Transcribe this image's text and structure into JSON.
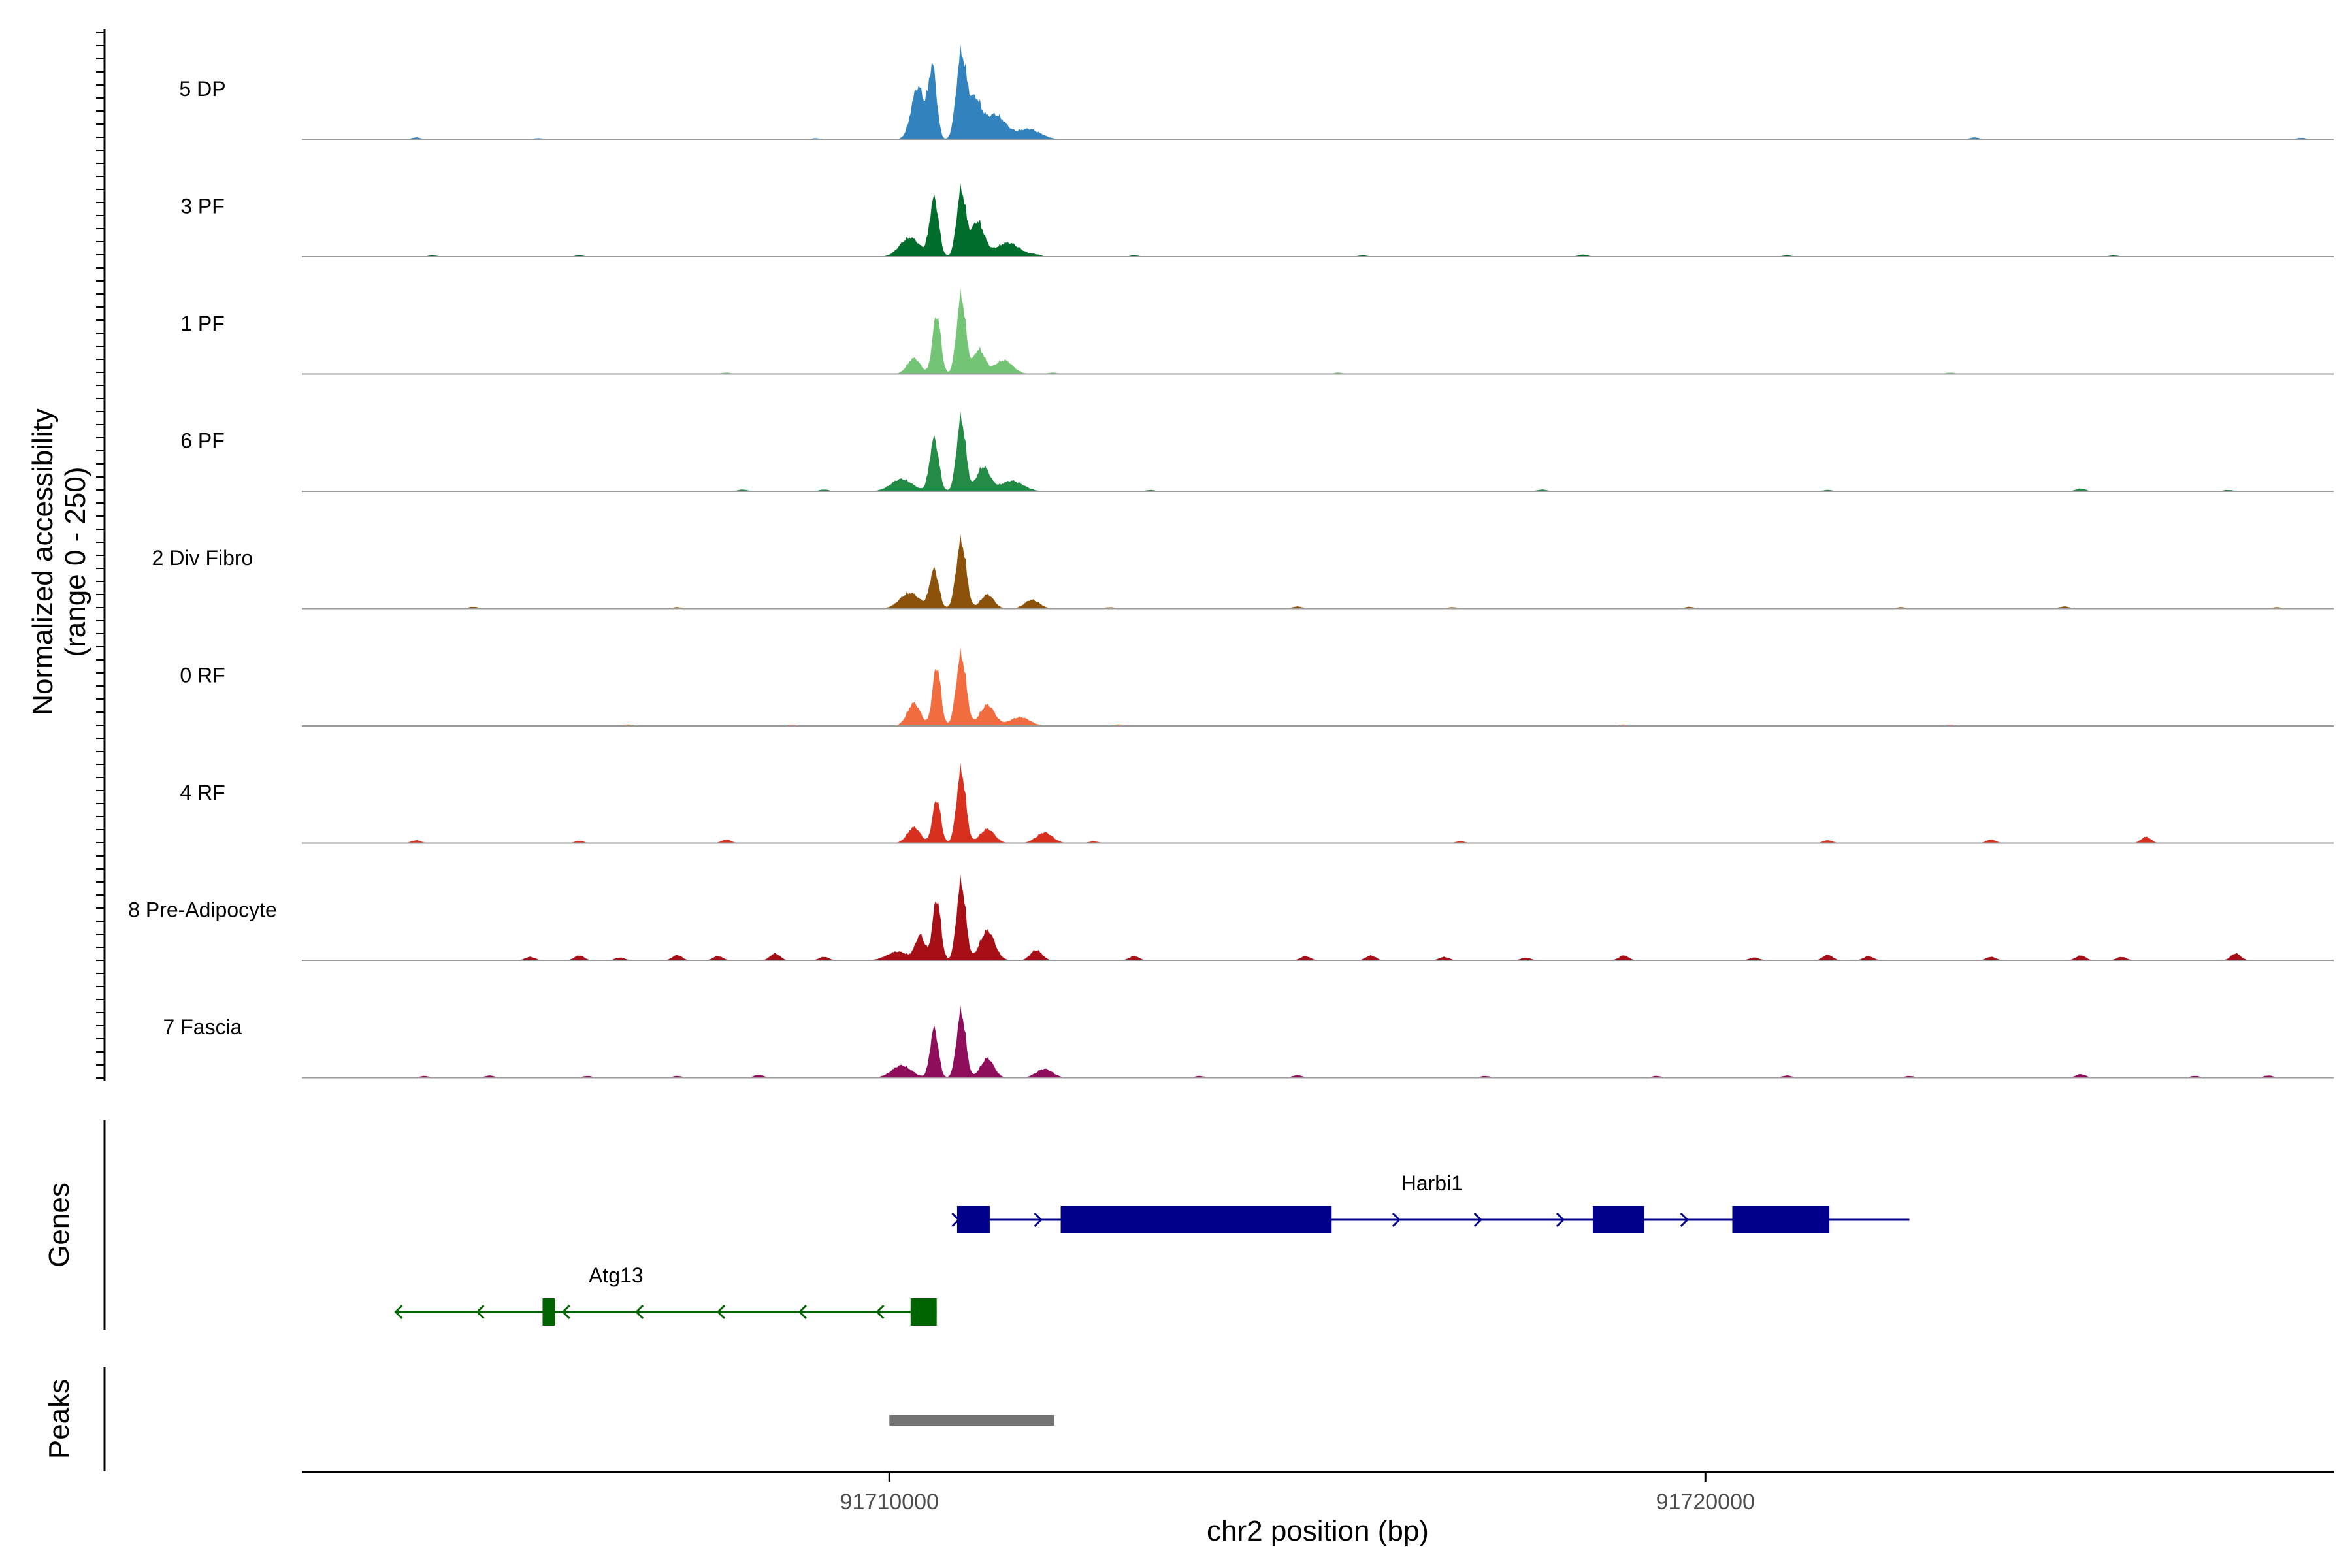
{
  "chart_data": {
    "type": "area",
    "title": "",
    "ylabel_line1": "Normalized accessibility",
    "ylabel_line2": "(range 0 - 250)",
    "genes_label": "Genes",
    "peaks_label": "Peaks",
    "xlabel": "chr2 position (bp)",
    "xlim": [
      91702800,
      91727700
    ],
    "ylim": [
      0,
      250
    ],
    "xticks": [
      91710000,
      91720000
    ],
    "xtick_labels": [
      "91710000",
      "91720000"
    ],
    "grid": false,
    "series": [
      {
        "name": "5 DP",
        "color": "#3182bd",
        "peaks": [
          [
            91710350,
            150,
            80
          ],
          [
            91710530,
            200,
            50
          ],
          [
            91710880,
            240,
            60
          ],
          [
            91711050,
            110,
            80
          ],
          [
            91711300,
            70,
            120
          ],
          [
            91711700,
            30,
            150
          ]
        ],
        "noise": [
          [
            91704200,
            6
          ],
          [
            91705700,
            4
          ],
          [
            91709100,
            4
          ],
          [
            91723300,
            6
          ],
          [
            91727300,
            5
          ]
        ]
      },
      {
        "name": "3 PF",
        "color": "#006d2c",
        "peaks": [
          [
            91710250,
            55,
            120
          ],
          [
            91710550,
            165,
            55
          ],
          [
            91710880,
            190,
            55
          ],
          [
            91711080,
            100,
            80
          ],
          [
            91711450,
            40,
            150
          ]
        ],
        "noise": [
          [
            91704400,
            4
          ],
          [
            91706200,
            4
          ],
          [
            91711800,
            5
          ],
          [
            91713000,
            4
          ],
          [
            91715800,
            4
          ],
          [
            91718500,
            6
          ],
          [
            91721000,
            4
          ],
          [
            91725000,
            4
          ]
        ]
      },
      {
        "name": "1 PF",
        "color": "#74c476",
        "peaks": [
          [
            91710300,
            45,
            80
          ],
          [
            91710580,
            170,
            50
          ],
          [
            91710880,
            225,
            55
          ],
          [
            91711100,
            70,
            70
          ],
          [
            91711400,
            40,
            110
          ]
        ],
        "noise": [
          [
            91708000,
            4
          ],
          [
            91712000,
            4
          ],
          [
            91715500,
            4
          ],
          [
            91723000,
            4
          ]
        ]
      },
      {
        "name": "6 PF",
        "color": "#238b45",
        "peaks": [
          [
            91710150,
            35,
            130
          ],
          [
            91710550,
            150,
            55
          ],
          [
            91710880,
            210,
            55
          ],
          [
            91711150,
            70,
            80
          ],
          [
            91711500,
            30,
            140
          ]
        ],
        "noise": [
          [
            91708200,
            5
          ],
          [
            91709200,
            5
          ],
          [
            91713200,
            4
          ],
          [
            91718000,
            5
          ],
          [
            91721500,
            4
          ],
          [
            91724600,
            8
          ],
          [
            91726400,
            4
          ]
        ]
      },
      {
        "name": "2 Div Fibro",
        "color": "#8c510a",
        "peaks": [
          [
            91710250,
            45,
            120
          ],
          [
            91710550,
            110,
            55
          ],
          [
            91710880,
            195,
            60
          ],
          [
            91711200,
            40,
            80
          ],
          [
            91711750,
            25,
            90
          ]
        ],
        "noise": [
          [
            91704900,
            5
          ],
          [
            91707400,
            4
          ],
          [
            91712700,
            4
          ],
          [
            91715000,
            6
          ],
          [
            91716900,
            4
          ],
          [
            91719800,
            5
          ],
          [
            91722400,
            4
          ],
          [
            91724400,
            6
          ],
          [
            91727000,
            4
          ]
        ]
      },
      {
        "name": "0 RF",
        "color": "#f16c3e",
        "peaks": [
          [
            91710300,
            65,
            80
          ],
          [
            91710580,
            170,
            50
          ],
          [
            91710880,
            205,
            60
          ],
          [
            91711200,
            60,
            90
          ],
          [
            91711600,
            25,
            120
          ]
        ],
        "noise": [
          [
            91706800,
            4
          ],
          [
            91708800,
            4
          ],
          [
            91712800,
            4
          ],
          [
            91719000,
            4
          ],
          [
            91723000,
            4
          ]
        ]
      },
      {
        "name": "4 RF",
        "color": "#d7301f",
        "peaks": [
          [
            91710300,
            45,
            80
          ],
          [
            91710580,
            125,
            50
          ],
          [
            91710880,
            210,
            55
          ],
          [
            91711200,
            40,
            90
          ],
          [
            91711900,
            30,
            100
          ]
        ],
        "noise": [
          [
            91704200,
            8
          ],
          [
            91706200,
            6
          ],
          [
            91708000,
            10
          ],
          [
            91712500,
            5
          ],
          [
            91717000,
            5
          ],
          [
            91721500,
            8
          ],
          [
            91723500,
            10
          ],
          [
            91725400,
            18
          ]
        ]
      },
      {
        "name": "8 Pre-Adipocyte",
        "color": "#a50f15",
        "peaks": [
          [
            91710100,
            25,
            130
          ],
          [
            91710380,
            70,
            60
          ],
          [
            91710580,
            175,
            50
          ],
          [
            91710880,
            225,
            55
          ],
          [
            91711200,
            85,
            90
          ],
          [
            91711800,
            30,
            70
          ]
        ],
        "noise": [
          [
            91705600,
            10
          ],
          [
            91706200,
            14
          ],
          [
            91706700,
            8
          ],
          [
            91707400,
            15
          ],
          [
            91707900,
            12
          ],
          [
            91708600,
            20
          ],
          [
            91709200,
            10
          ],
          [
            91713000,
            12
          ],
          [
            91715100,
            12
          ],
          [
            91715900,
            14
          ],
          [
            91716800,
            10
          ],
          [
            91717800,
            8
          ],
          [
            91719000,
            14
          ],
          [
            91720600,
            8
          ],
          [
            91721500,
            16
          ],
          [
            91722000,
            12
          ],
          [
            91723500,
            10
          ],
          [
            91724600,
            14
          ],
          [
            91725100,
            10
          ],
          [
            91726500,
            20
          ]
        ]
      },
      {
        "name": "7 Fascia",
        "color": "#8f0e5b",
        "peaks": [
          [
            91710150,
            35,
            120
          ],
          [
            91710550,
            140,
            50
          ],
          [
            91710880,
            190,
            55
          ],
          [
            91711200,
            55,
            80
          ],
          [
            91711900,
            25,
            100
          ]
        ],
        "noise": [
          [
            91704300,
            5
          ],
          [
            91705100,
            6
          ],
          [
            91706300,
            5
          ],
          [
            91707400,
            5
          ],
          [
            91708400,
            8
          ],
          [
            91713800,
            5
          ],
          [
            91715000,
            7
          ],
          [
            91717300,
            5
          ],
          [
            91719400,
            5
          ],
          [
            91721000,
            6
          ],
          [
            91722500,
            5
          ],
          [
            91724600,
            10
          ],
          [
            91726000,
            5
          ],
          [
            91726900,
            6
          ]
        ]
      }
    ],
    "genes": [
      {
        "name": "Harbi1",
        "strand": "+",
        "color": "#00008b",
        "start": 91710830,
        "end": 91722500,
        "exons": [
          [
            91710830,
            91711230
          ],
          [
            91712100,
            91715420
          ],
          [
            91718620,
            91719250
          ],
          [
            91720330,
            91721520
          ]
        ],
        "arrows": [
          91710850,
          91711860,
          91716250,
          91717250,
          91718260,
          91719780
        ]
      },
      {
        "name": "Atg13",
        "strand": "-",
        "color": "#006400",
        "start": 91703950,
        "end": 91710580,
        "exons": [
          [
            91705750,
            91705900
          ],
          [
            91710260,
            91710580
          ]
        ],
        "arrows": [
          91703950,
          91704950,
          91706000,
          91706900,
          91707900,
          91708900,
          91709850
        ]
      }
    ],
    "peaks": [
      {
        "start": 91710000,
        "end": 91712020,
        "color": "#737373"
      }
    ]
  }
}
